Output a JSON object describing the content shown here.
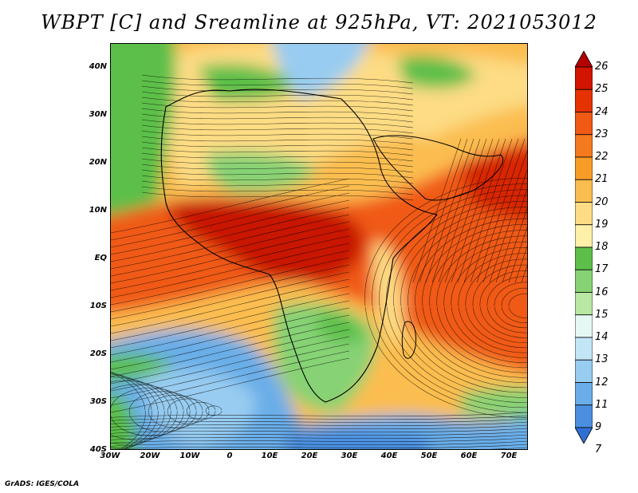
{
  "title": "WBPT [C] and Sreamline at 925hPa, VT: 2021053012",
  "credit": "GrADS: IGES/COLA",
  "lat_labels": [
    "40N",
    "30N",
    "20N",
    "10N",
    "EQ",
    "10S",
    "20S",
    "30S",
    "40S"
  ],
  "lon_labels": [
    "30W",
    "20W",
    "10W",
    "0",
    "10E",
    "20E",
    "30E",
    "40E",
    "50E",
    "60E",
    "70E"
  ],
  "colorbar": {
    "labels": [
      "26",
      "25",
      "24",
      "23",
      "22",
      "21",
      "20",
      "19",
      "18",
      "17",
      "16",
      "15",
      "14",
      "13",
      "12",
      "11",
      "9",
      "7"
    ],
    "colors": [
      "#b40000",
      "#d21400",
      "#e63200",
      "#f05a14",
      "#f47a1e",
      "#f89c28",
      "#fbbd4f",
      "#fddc84",
      "#fef0a8",
      "#5cbf4a",
      "#86d274",
      "#b8e8a4",
      "#e6f8f4",
      "#c2e6f6",
      "#98ccf0",
      "#6aaee8",
      "#4a8fe0",
      "#2f70d4"
    ]
  }
}
